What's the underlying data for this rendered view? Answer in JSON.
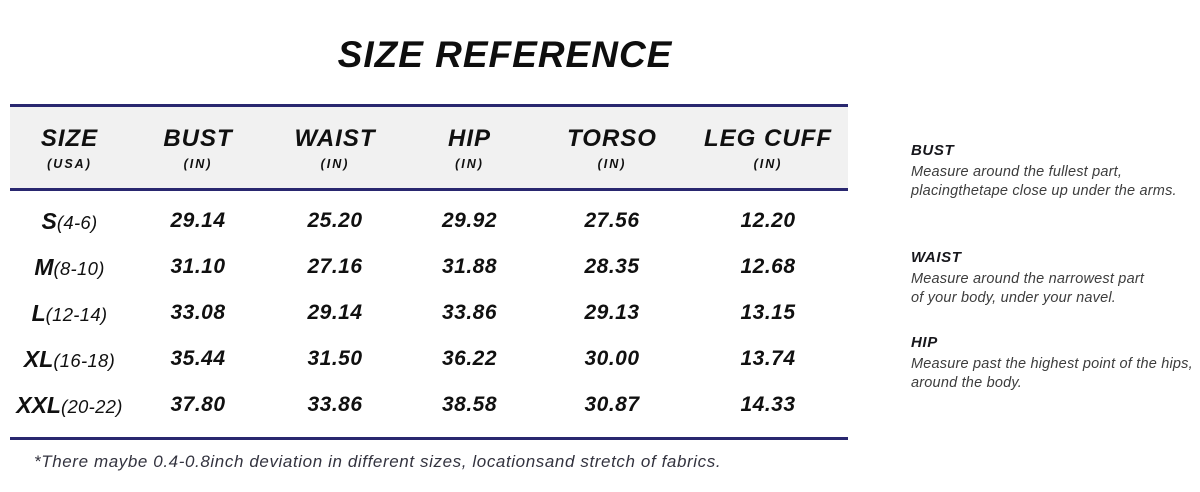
{
  "chart_data": {
    "type": "table",
    "title": "SIZE REFERENCE",
    "columns": [
      {
        "label": "SIZE",
        "unit": "(USA)"
      },
      {
        "label": "BUST",
        "unit": "(IN)"
      },
      {
        "label": "WAIST",
        "unit": "(IN)"
      },
      {
        "label": "HIP",
        "unit": "(IN)"
      },
      {
        "label": "TORSO",
        "unit": "(IN)"
      },
      {
        "label": "LEG CUFF",
        "unit": "(IN)"
      }
    ],
    "rows": [
      {
        "size": "S",
        "range": "(4-6)",
        "bust": "29.14",
        "waist": "25.20",
        "hip": "29.92",
        "torso": "27.56",
        "leg_cuff": "12.20"
      },
      {
        "size": "M",
        "range": "(8-10)",
        "bust": "31.10",
        "waist": "27.16",
        "hip": "31.88",
        "torso": "28.35",
        "leg_cuff": "12.68"
      },
      {
        "size": "L",
        "range": "(12-14)",
        "bust": "33.08",
        "waist": "29.14",
        "hip": "33.86",
        "torso": "29.13",
        "leg_cuff": "13.15"
      },
      {
        "size": "XL",
        "range": "(16-18)",
        "bust": "35.44",
        "waist": "31.50",
        "hip": "36.22",
        "torso": "30.00",
        "leg_cuff": "13.74"
      },
      {
        "size": "XXL",
        "range": "(20-22)",
        "bust": "37.80",
        "waist": "33.86",
        "hip": "38.58",
        "torso": "30.87",
        "leg_cuff": "14.33"
      }
    ]
  },
  "measure_guide": {
    "bust": {
      "heading": "BUST",
      "line1": "Measure around the fullest part,",
      "line2": "placingthetape close up under the arms."
    },
    "waist": {
      "heading": "WAIST",
      "line1": "Measure around the narrowest part",
      "line2": "of your body, under your navel."
    },
    "hip": {
      "heading": "HIP",
      "line1": "Measure past the highest point of the hips,",
      "line2": "around the body."
    }
  },
  "footnote": "*There maybe 0.4-0.8inch deviation in different sizes, locationsand stretch of fabrics.",
  "colors": {
    "rule": "#29276f",
    "header_bg": "#f1f1f1",
    "guide_text": "#3d3d3d"
  }
}
